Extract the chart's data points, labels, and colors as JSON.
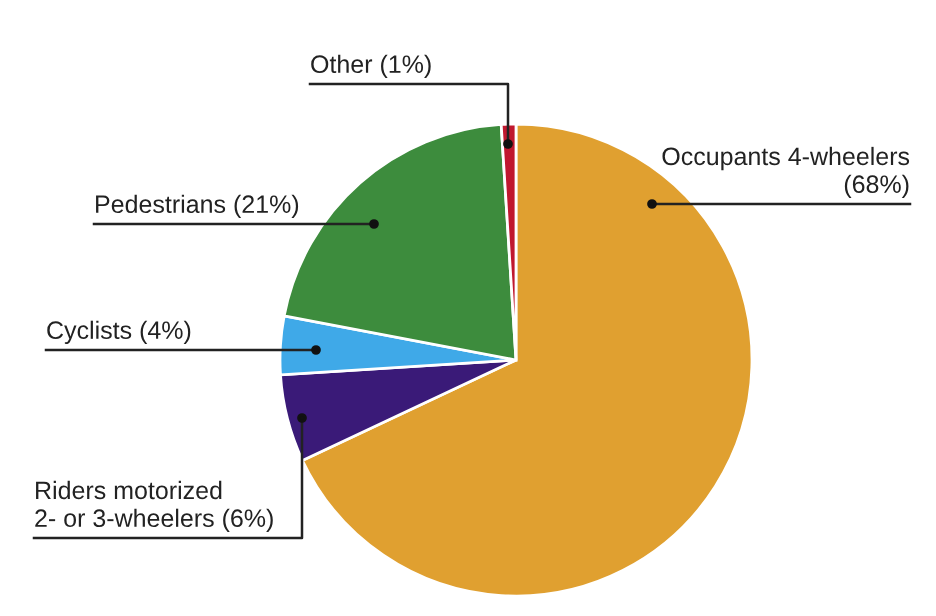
{
  "chart_data": {
    "type": "pie",
    "categories": [
      "Occupants 4-wheelers\n(68%)",
      "Riders motorized\n2- or 3-wheelers (6%)",
      "Cyclists (4%)",
      "Pedestrians (21%)",
      "Other (1%)"
    ],
    "values": [
      68,
      6,
      4,
      21,
      1
    ],
    "colors": [
      "#e0a030",
      "#3a1a78",
      "#3fa9e8",
      "#3d8c3d",
      "#c0182f"
    ],
    "legend": false
  }
}
